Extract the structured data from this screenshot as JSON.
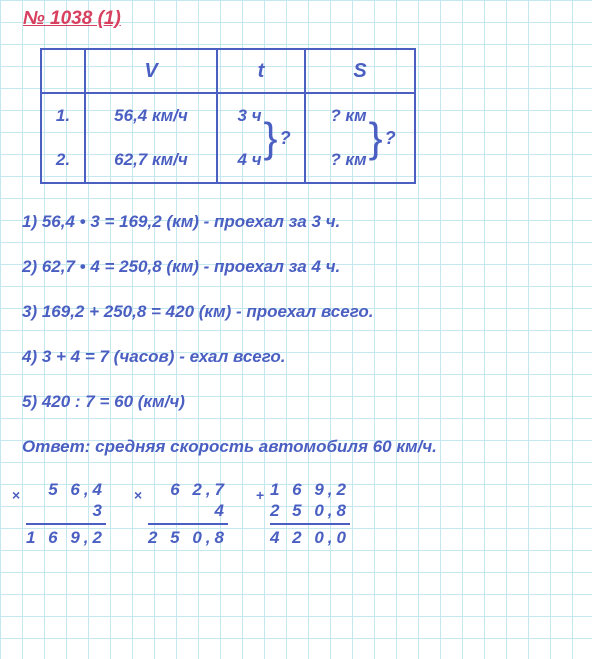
{
  "title": "№ 1038 (1)",
  "table": {
    "headers": {
      "v": "V",
      "t": "t",
      "s": "S"
    },
    "rows": [
      {
        "num": "1.",
        "v": "56,4 км/ч",
        "t": "3 ч",
        "s": "? км"
      },
      {
        "num": "2.",
        "v": "62,7 км/ч",
        "t": "4 ч",
        "s": "? км"
      }
    ],
    "brace_q": "?"
  },
  "steps": [
    "1) 56,4 • 3 = 169,2 (км) - проехал за 3 ч.",
    "2) 62,7 • 4 = 250,8 (км) - проехал за 4 ч.",
    "3) 169,2 + 250,8 = 420 (км) - проехал всего.",
    "4) 3 + 4 = 7 (часов) - ехал всего.",
    "5) 420 : 7 = 60 (км/ч)"
  ],
  "answer": "Ответ: средняя скорость автомобиля 60 км/ч.",
  "calculations": [
    {
      "op": "×",
      "a": "5 6,4",
      "b": "3",
      "result": "1 6 9,2"
    },
    {
      "op": "×",
      "a": "6 2,7",
      "b": "4",
      "result": "2 5 0,8"
    },
    {
      "op": "+",
      "a": "1 6 9,2",
      "b": "2 5 0,8",
      "result": "4 2 0,0"
    }
  ],
  "colors": {
    "text": "#4a5fc1",
    "title": "#d84060",
    "grid": "#c5e8f0",
    "background": "#ffffff"
  },
  "font": {
    "family": "Arial",
    "weight": "bold",
    "style": "italic",
    "body_size": 17,
    "title_size": 19
  }
}
